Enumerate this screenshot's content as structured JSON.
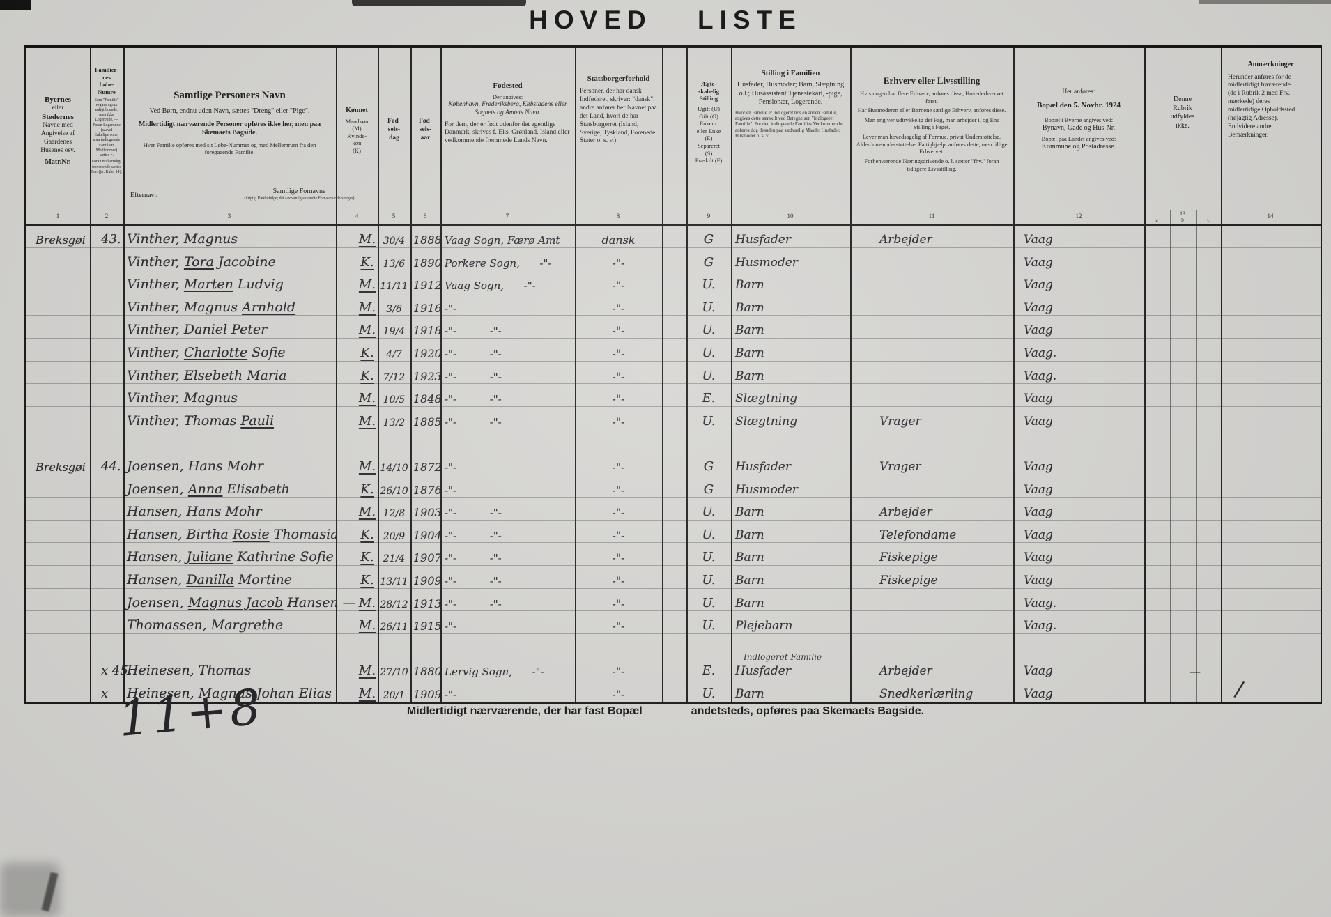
{
  "title": "HOVED  LISTE",
  "header": {
    "col1": {
      "l1": "Byernes",
      "l2": "eller",
      "l3": "Stedernes",
      "l4": "Navne med\nAngivelse af\nGaardenes\nHusenes osv.",
      "l5": "Matr.Nr."
    },
    "col2": {
      "title": "Familier-\nnes\nLøbe-\nNumre",
      "small": "Som \"Familie\" regnes ogsaa enligt boende, men ikke Logerende. — Foran Logerende (saavel Enkeltpersoner som indlogerede Familiers Medlemmer) sættes ×.",
      "small2": "Foran midlertidigt fraværende sættes Frv. (jfr. Rubr. 14)."
    },
    "col3": {
      "title": "Samtlige Personers Navn",
      "s1": "Ved Børn, endnu uden Navn, sættes \"Dreng\" eller \"Pige\".",
      "s2": "Midlertidigt nærværende Personer opføres ikke her, men paa Skemaets Bagside.",
      "s3": "Hver Familie opføres med sit Løbe-Nummer og med Mellemrum fra den foregaaende Familie.",
      "efternavn": "Efternavn",
      "fornavne": "Samtlige Fornavne",
      "fornavne_small": "(i rigtig Rækkefølge; det sædvanlig anvendte Fornavn understreges)"
    },
    "col4": {
      "title": "Kønnet",
      "body": "Mandkøn\n(M)\nKvinde-\nkøn\n(K)"
    },
    "col5": {
      "title": "Fød-\nsels-\ndag"
    },
    "col6": {
      "title": "Fød-\nsels-\naar"
    },
    "col7": {
      "title": "Fødested",
      "s1": "Der angives:",
      "s2": "København, Frederiksberg, Købstadens eller Sognets og Amtets Navn.",
      "s3": "For dem, der er født udenfor det egentlige Danmark, skrives f. Eks. Grønland, Island eller vedkommende fremmede Lands Navn."
    },
    "col8": {
      "title": "Statsborgerforhold",
      "body": "Personer, der har dansk Indfødsret, skriver: \"dansk\"; andre anfører her Navnet paa det Land, hvori de har Statsborgerret (Island, Sverige, Tyskland, Forenede Stater o. s. v.)"
    },
    "col9": {
      "title": "Ægte-\nskabelig\nStilling",
      "body": "Ugift (U)\nGift (G)\nEnkem.\neller Enke\n(E)\nSepareret\n(S)\nFraskilt (F)"
    },
    "col10": {
      "title": "Stilling i Familien",
      "body": "Husfader, Husmoder; Barn, Slægtning o.l.; Husassistent Tjenestekarl, -pige, Pensionær, Logerende.",
      "small": "Hvor en Familie er indlogeret hos en anden Familie, angives dette særskilt ved Betegnelsen \"Indlogeret Familie\". For den indlogerede Families Vedkommende anføres dog desuden paa sædvanlig Maade: Husfader, Husmoder o. s. v."
    },
    "col11": {
      "title": "Erhverv eller Livsstilling",
      "p1": "Hvis nogen har flere Erhverv, anføres disse, Hovederhvervet først.",
      "p2": "Har Husmoderen eller Børnene særlige Erhverv, anføres disse.",
      "p3": "Man angiver udtrykkelig det Fag, man arbejder i, og Ens Stilling i Faget.",
      "p4": "Lever man hovedsagelig af Formue, privat Understøttelse, Alderdomsunderstøttelse, Fattighjælp, anføres dette, men tillige Erhvervet.",
      "p5": "Forhenværende Næringsdrivende o. l. sætter \"fhv.\" foran tidligere Livsstilling."
    },
    "col12": {
      "pre": "Her anføres:",
      "title": "Bopæl den 5. Novbr. 1924",
      "s1": "Bopæl i Byerne angives ved:",
      "s2": "Bynavn, Gade og Hus-Nr.",
      "s3": "Bopæl paa Landet angives ved:",
      "s4": "Kommune og Postadresse."
    },
    "col13": {
      "body": "Denne\nRubrik\nudfyldes\nikke."
    },
    "col14": {
      "title": "Anmærkninger",
      "body": "Herunder anføres for de midlertidigt fraværende (de i Rubrik 2 med Frv. mærkede) deres midlertidige Opholdssted (nøjagtig Adresse). Endvidere andre Bemærkninger."
    }
  },
  "col_numbers": [
    "1",
    "2",
    "3",
    "4",
    "5",
    "6",
    "7",
    "8",
    "9",
    "10",
    "11",
    "12",
    "13",
    "14"
  ],
  "sub_numbers": [
    "a",
    "b",
    "c"
  ],
  "rows": [
    {
      "place": "Breksgøi",
      "fam": "43.",
      "sur": "Vinther,",
      "giv": "Magnus",
      "sex": "M.",
      "day": "30/4",
      "yr": "1888",
      "born": "Vaag Sogn, Færø Amt",
      "cit": "dansk",
      "mar": "G",
      "pos": "Husfader",
      "occ": "Arbejder",
      "res": "Vaag"
    },
    {
      "sur": "Vinther,",
      "giv": "Tora Jacobine",
      "u": "Tora",
      "sex": "K.",
      "day": "13/6",
      "yr": "1890",
      "born": "Porkere Sogn,      -\"-",
      "cit": "-\"-",
      "mar": "G",
      "pos": "Husmoder",
      "res": "Vaag"
    },
    {
      "sur": "Vinther,",
      "giv": "Marten Ludvig",
      "u": "Marten",
      "sex": "M.",
      "day": "11/11",
      "yr": "1912",
      "born": "Vaag Sogn,      -\"-",
      "cit": "-\"-",
      "mar": "U.",
      "pos": "Barn",
      "res": "Vaag"
    },
    {
      "sur": "Vinther,",
      "giv": "Magnus Arnhold",
      "u": "Arnhold",
      "sex": "M.",
      "day": "3/6",
      "yr": "1916",
      "born": "-\"-",
      "cit": "-\"-",
      "mar": "U.",
      "pos": "Barn",
      "res": "Vaag"
    },
    {
      "sur": "Vinther,",
      "giv": "Daniel Peter",
      "sex": "M.",
      "day": "19/4",
      "yr": "1918",
      "born": "-\"-          -\"-",
      "cit": "-\"-",
      "mar": "U.",
      "pos": "Barn",
      "res": "Vaag"
    },
    {
      "sur": "Vinther,",
      "giv": "Charlotte Sofie",
      "u": "Charlotte",
      "sex": "K.",
      "day": "4/7",
      "yr": "1920",
      "born": "-\"-          -\"-",
      "cit": "-\"-",
      "mar": "U.",
      "pos": "Barn",
      "res": "Vaag."
    },
    {
      "sur": "Vinther,",
      "giv": "Elsebeth Maria",
      "sex": "K.",
      "day": "7/12",
      "yr": "1923",
      "born": "-\"-          -\"-",
      "cit": "-\"-",
      "mar": "U.",
      "pos": "Barn",
      "res": "Vaag."
    },
    {
      "sur": "Vinther,",
      "giv": "Magnus",
      "sex": "M.",
      "day": "10/5",
      "yr": "1848",
      "born": "-\"-          -\"-",
      "cit": "-\"-",
      "mar": "E.",
      "pos": "Slægtning",
      "res": "Vaag"
    },
    {
      "sur": "Vinther,",
      "giv": "Thomas Pauli",
      "u": "Pauli",
      "sex": "M.",
      "day": "13/2",
      "yr": "1885",
      "born": "-\"-          -\"-",
      "cit": "-\"-",
      "mar": "U.",
      "pos": "Slægtning",
      "occ": "Vrager",
      "res": "Vaag"
    },
    {},
    {
      "place": "Breksgøi",
      "fam": "44.",
      "sur": "Joensen,",
      "giv": "Hans Mohr",
      "sex": "M.",
      "day": "14/10",
      "yr": "1872",
      "born": "-\"-",
      "cit": "-\"-",
      "mar": "G",
      "pos": "Husfader",
      "occ": "Vrager",
      "res": "Vaag"
    },
    {
      "sur": "Joensen,",
      "giv": "Anna Elisabeth",
      "u": "Anna",
      "sex": "K.",
      "day": "26/10",
      "yr": "1876",
      "born": "-\"-",
      "cit": "-\"-",
      "mar": "G",
      "pos": "Husmoder",
      "res": "Vaag"
    },
    {
      "sur": "Hansen,",
      "giv": "Hans Mohr",
      "sex": "M.",
      "day": "12/8",
      "yr": "1903",
      "born": "-\"-          -\"-",
      "cit": "-\"-",
      "mar": "U.",
      "pos": "Barn",
      "occ": "Arbejder",
      "res": "Vaag"
    },
    {
      "sur": "Hansen,",
      "giv": "Birtha Rosie Thomasia",
      "u": "Rosie",
      "sex": "K.",
      "day": "20/9",
      "yr": "1904",
      "born": "-\"-          -\"-",
      "cit": "-\"-",
      "mar": "U.",
      "pos": "Barn",
      "occ": "Telefondame",
      "res": "Vaag"
    },
    {
      "sur": "Hansen,",
      "giv": "Juliane Kathrine Sofie",
      "u": "Juliane",
      "sex": "K.",
      "day": "21/4",
      "yr": "1907",
      "born": "-\"-          -\"-",
      "cit": "-\"-",
      "mar": "U.",
      "pos": "Barn",
      "occ": "Fiskepige",
      "res": "Vaag"
    },
    {
      "sur": "Hansen,",
      "giv": "Danilla Mortine",
      "u": "Danilla",
      "sex": "K.",
      "day": "13/11",
      "yr": "1909",
      "born": "-\"-          -\"-",
      "cit": "-\"-",
      "mar": "U.",
      "pos": "Barn",
      "occ": "Fiskepige",
      "res": "Vaag"
    },
    {
      "sur": "Joensen,",
      "giv": "Magnus Jacob Hansen —",
      "u": "Magnus Jacob",
      "sex": "M.",
      "day": "28/12",
      "yr": "1913",
      "born": "-\"-          -\"-",
      "cit": "-\"-",
      "mar": "U.",
      "pos": "Barn",
      "res": "Vaag."
    },
    {
      "sur": "Thomassen,",
      "giv": "Margrethe",
      "sex": "M.",
      "day": "26/11",
      "yr": "1915",
      "born": "-\"-",
      "cit": "-\"-",
      "mar": "U.",
      "pos": "Plejebarn",
      "res": "Vaag."
    },
    {},
    {
      "fam": "x 45.",
      "sur": "Heinesen,",
      "giv": "Thomas",
      "sex": "M.",
      "day": "27/10",
      "yr": "1880",
      "born": "Lervig Sogn,      -\"-",
      "cit": "-\"-",
      "mar": "E.",
      "pos": "Husfader",
      "pos_note": "Indlogeret Familie",
      "occ": "Arbejder",
      "res": "Vaag",
      "m13": "—"
    },
    {
      "fam": "x",
      "sur": "Heinesen,",
      "giv": "Magnus Johan Elias",
      "sex": "M.",
      "day": "20/1",
      "yr": "1909",
      "born": "-\"-",
      "cit": "-\"-",
      "mar": "U.",
      "pos": "Barn",
      "occ": "Snedkerlærling",
      "res": "Vaag",
      "m14": "/"
    }
  ],
  "footer": {
    "note_left": "Midlertidigt nærværende, der har fast Bopæl",
    "note_right": "andetsteds, opføres paa Skemaets Bagside.",
    "tally": "11+8"
  }
}
